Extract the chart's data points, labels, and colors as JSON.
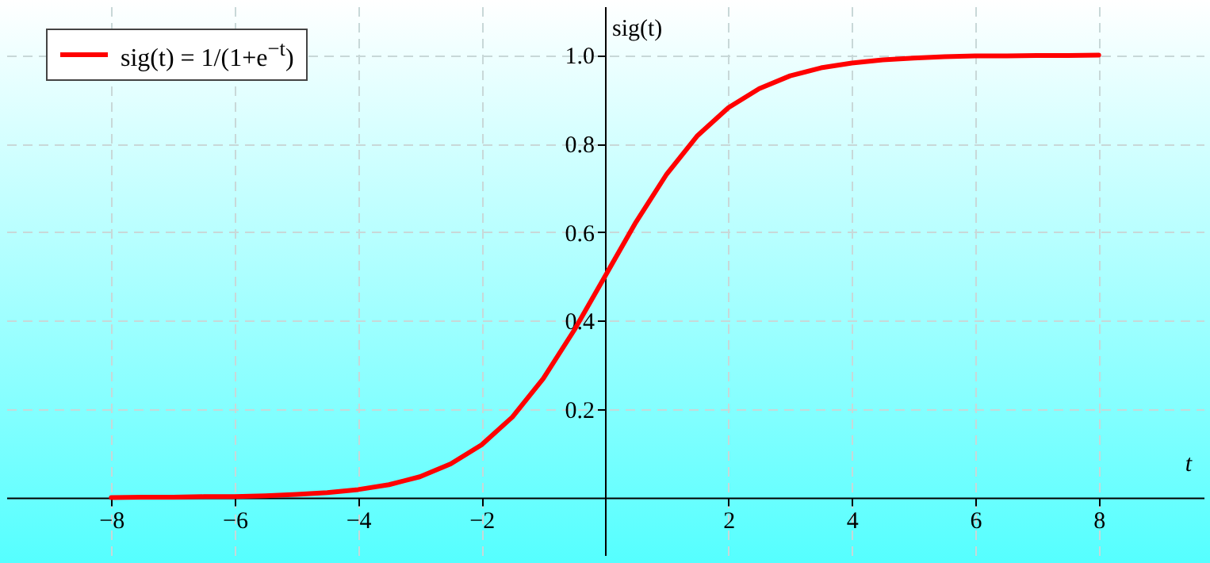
{
  "chart_data": {
    "type": "line",
    "xlabel": "t",
    "ylabel": "sig(t)",
    "x": [
      -8,
      -7.5,
      -7,
      -6.5,
      -6,
      -5.5,
      -5,
      -4.5,
      -4,
      -3.5,
      -3,
      -2.5,
      -2,
      -1.5,
      -1,
      -0.5,
      0,
      0.5,
      1,
      1.5,
      2,
      2.5,
      3,
      3.5,
      4,
      4.5,
      5,
      5.5,
      6,
      6.5,
      7,
      7.5,
      8
    ],
    "series": [
      {
        "name": "sig(t) = 1/(1+e$^{−t}$)",
        "color": "#ff0000",
        "values": [
          0.0,
          0.001,
          0.001,
          0.002,
          0.002,
          0.004,
          0.007,
          0.011,
          0.018,
          0.029,
          0.047,
          0.076,
          0.119,
          0.182,
          0.269,
          0.378,
          0.5,
          0.622,
          0.731,
          0.818,
          0.881,
          0.924,
          0.953,
          0.971,
          0.982,
          0.989,
          0.993,
          0.996,
          0.998,
          0.998,
          0.999,
          0.999,
          1.0
        ]
      }
    ],
    "xlim": [
      -9.7,
      9.7
    ],
    "ylim": [
      -0.13,
      1.11
    ],
    "xticks": [
      -8,
      -6,
      -4,
      -2,
      2,
      4,
      6,
      8
    ],
    "yticks": [
      0.2,
      0.4,
      0.6,
      0.8,
      {
        "value": 1,
        "label": "1.0"
      }
    ],
    "grid": true,
    "legend": "top left",
    "line_style": "solid",
    "marker": "none"
  }
}
